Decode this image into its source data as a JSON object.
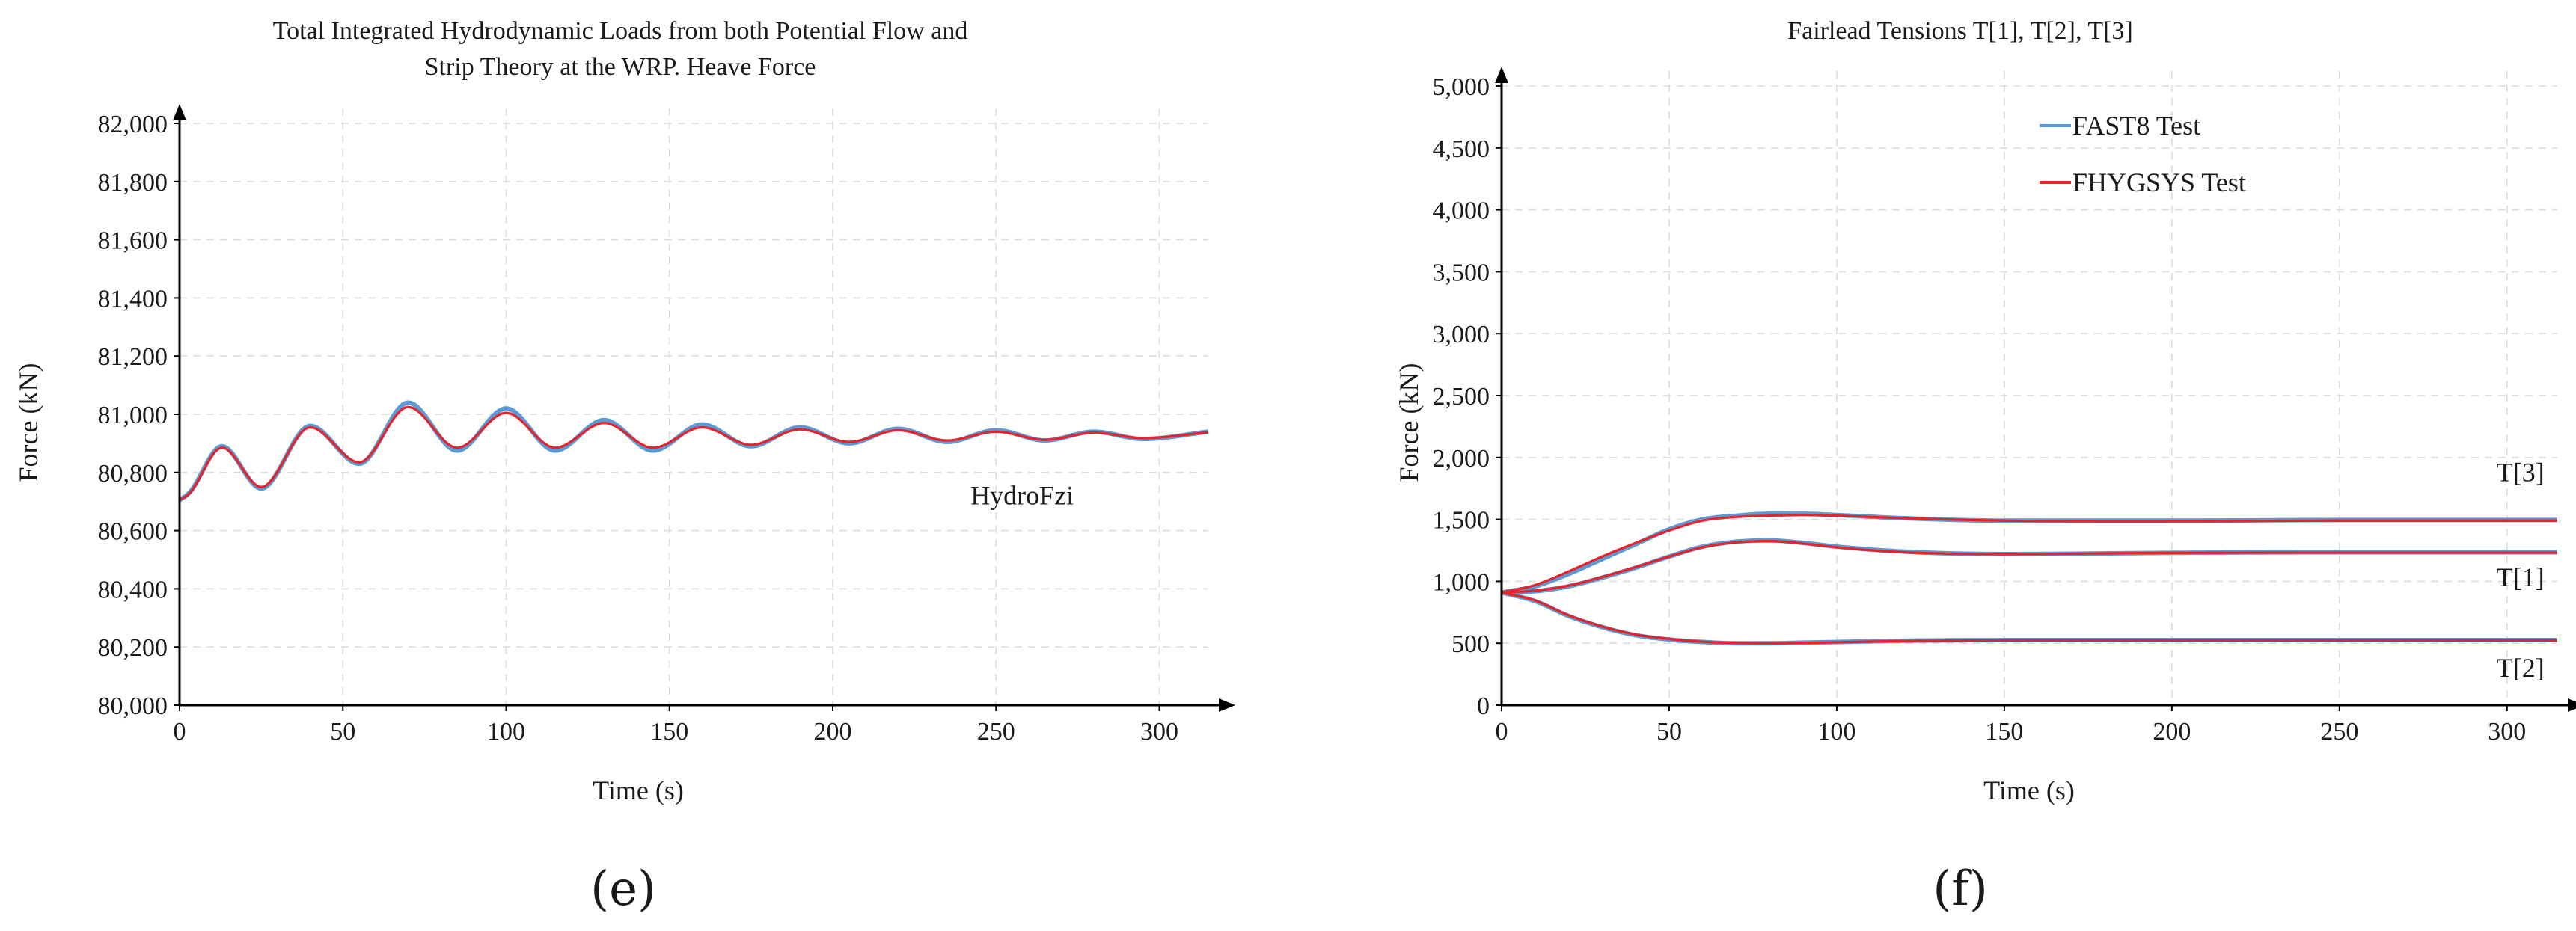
{
  "colors": {
    "fast8": "#5b9bd5",
    "fhygsys": "#e8222a",
    "axis": "#000000",
    "grid": "#dcdcdc"
  },
  "chart_data": [
    {
      "panel": "(e)",
      "type": "line",
      "title_lines": [
        "Total Integrated Hydrodynamic Loads from both Potential Flow and",
        "Strip Theory at the WRP. Heave Force"
      ],
      "xlabel": "Time (s)",
      "ylabel": "Force (kN)",
      "xlim": [
        0,
        315
      ],
      "ylim": [
        80000,
        82000
      ],
      "x_ticks": [
        0,
        50,
        100,
        150,
        200,
        250,
        300
      ],
      "x_tick_labels": [
        "0",
        "50",
        "100",
        "150",
        "200",
        "250",
        "300"
      ],
      "y_ticks": [
        80000,
        80200,
        80400,
        80600,
        80800,
        81000,
        81200,
        81400,
        81600,
        81800,
        82000
      ],
      "y_tick_labels": [
        "80,000",
        "80,200",
        "80,400",
        "80,600",
        "80,800",
        "81,000",
        "81,200",
        "81,400",
        "81,600",
        "81,800",
        "82,000"
      ],
      "annotations": [
        {
          "text": "HydroFzi",
          "x": 258,
          "y": 80690
        }
      ],
      "oscillation_period_s": 30,
      "series": [
        {
          "name": "FAST8 Test",
          "color_key": "fast8",
          "x": [
            0,
            3,
            13,
            25,
            40,
            55,
            70,
            85,
            100,
            115,
            130,
            145,
            160,
            175,
            190,
            205,
            220,
            235,
            250,
            265,
            280,
            295,
            315
          ],
          "y": [
            80705,
            80730,
            80890,
            80745,
            80960,
            80830,
            81040,
            80875,
            81020,
            80875,
            80980,
            80875,
            80965,
            80890,
            80955,
            80900,
            80950,
            80905,
            80945,
            80910,
            80940,
            80915,
            80940
          ]
        },
        {
          "name": "FHYGSYS Test",
          "color_key": "fhygsys",
          "x": [
            0,
            3,
            13,
            25,
            40,
            55,
            70,
            85,
            100,
            115,
            130,
            145,
            160,
            175,
            190,
            205,
            220,
            235,
            250,
            265,
            280,
            295,
            315
          ],
          "y": [
            80705,
            80728,
            80885,
            80750,
            80955,
            80835,
            81025,
            80885,
            81005,
            80885,
            80970,
            80885,
            80955,
            80895,
            80948,
            80905,
            80945,
            80910,
            80940,
            80912,
            80937,
            80918,
            80938
          ]
        }
      ]
    },
    {
      "panel": "(f)",
      "type": "line",
      "title": "Fairlead Tensions T[1], T[2], T[3]",
      "xlabel": "Time (s)",
      "ylabel": "Force (kN)",
      "xlim": [
        0,
        315
      ],
      "ylim": [
        0,
        5000
      ],
      "x_ticks": [
        0,
        50,
        100,
        150,
        200,
        250,
        300
      ],
      "x_tick_labels": [
        "0",
        "50",
        "100",
        "150",
        "200",
        "250",
        "300"
      ],
      "y_ticks": [
        0,
        500,
        1000,
        1500,
        2000,
        2500,
        3000,
        3500,
        4000,
        4500,
        5000
      ],
      "y_tick_labels": [
        "0",
        "500",
        "1,000",
        "1,500",
        "2,000",
        "2,500",
        "3,000",
        "3,500",
        "4,000",
        "4,500",
        "5,000"
      ],
      "legend": {
        "position": "top-right",
        "entries": [
          "FAST8 Test",
          "FHYGSYS Test"
        ]
      },
      "annotations": [
        {
          "text": "T[3]",
          "x": 304,
          "y": 1810
        },
        {
          "text": "T[1]",
          "x": 304,
          "y": 960
        },
        {
          "text": "T[2]",
          "x": 304,
          "y": 230
        }
      ],
      "series": [
        {
          "name": "FAST8 Test T[3]",
          "color_key": "fast8",
          "x": [
            0,
            10,
            20,
            30,
            40,
            50,
            60,
            70,
            80,
            90,
            100,
            120,
            150,
            200,
            250,
            300,
            315
          ],
          "y": [
            910,
            960,
            1060,
            1180,
            1300,
            1420,
            1500,
            1530,
            1545,
            1545,
            1535,
            1510,
            1490,
            1490,
            1495,
            1495,
            1495
          ]
        },
        {
          "name": "FAST8 Test T[1]",
          "color_key": "fast8",
          "x": [
            0,
            10,
            20,
            30,
            40,
            50,
            60,
            70,
            80,
            90,
            100,
            120,
            150,
            200,
            250,
            300,
            315
          ],
          "y": [
            910,
            920,
            960,
            1030,
            1110,
            1200,
            1280,
            1320,
            1330,
            1310,
            1280,
            1240,
            1220,
            1230,
            1235,
            1235,
            1235
          ]
        },
        {
          "name": "FAST8 Test T[2]",
          "color_key": "fast8",
          "x": [
            0,
            10,
            20,
            30,
            40,
            50,
            60,
            70,
            80,
            90,
            100,
            120,
            150,
            200,
            250,
            300,
            315
          ],
          "y": [
            910,
            840,
            720,
            630,
            565,
            530,
            510,
            500,
            500,
            505,
            510,
            520,
            525,
            525,
            525,
            525,
            525
          ]
        },
        {
          "name": "FHYGSYS Test T[3]",
          "color_key": "fhygsys",
          "x": [
            0,
            10,
            20,
            30,
            40,
            50,
            60,
            70,
            80,
            90,
            100,
            120,
            150,
            200,
            250,
            300,
            315
          ],
          "y": [
            910,
            970,
            1080,
            1200,
            1310,
            1410,
            1490,
            1520,
            1530,
            1535,
            1530,
            1510,
            1490,
            1485,
            1490,
            1490,
            1490
          ]
        },
        {
          "name": "FHYGSYS Test T[1]",
          "color_key": "fhygsys",
          "x": [
            0,
            10,
            20,
            30,
            40,
            50,
            60,
            70,
            80,
            90,
            100,
            120,
            150,
            200,
            250,
            300,
            315
          ],
          "y": [
            910,
            925,
            965,
            1035,
            1115,
            1200,
            1275,
            1315,
            1325,
            1305,
            1275,
            1235,
            1220,
            1230,
            1232,
            1232,
            1232
          ]
        },
        {
          "name": "FHYGSYS Test T[2]",
          "color_key": "fhygsys",
          "x": [
            0,
            10,
            20,
            30,
            40,
            50,
            60,
            70,
            80,
            90,
            100,
            120,
            150,
            200,
            250,
            300,
            315
          ],
          "y": [
            910,
            845,
            725,
            635,
            570,
            535,
            512,
            502,
            500,
            503,
            508,
            518,
            522,
            522,
            522,
            522,
            522
          ]
        }
      ]
    }
  ]
}
